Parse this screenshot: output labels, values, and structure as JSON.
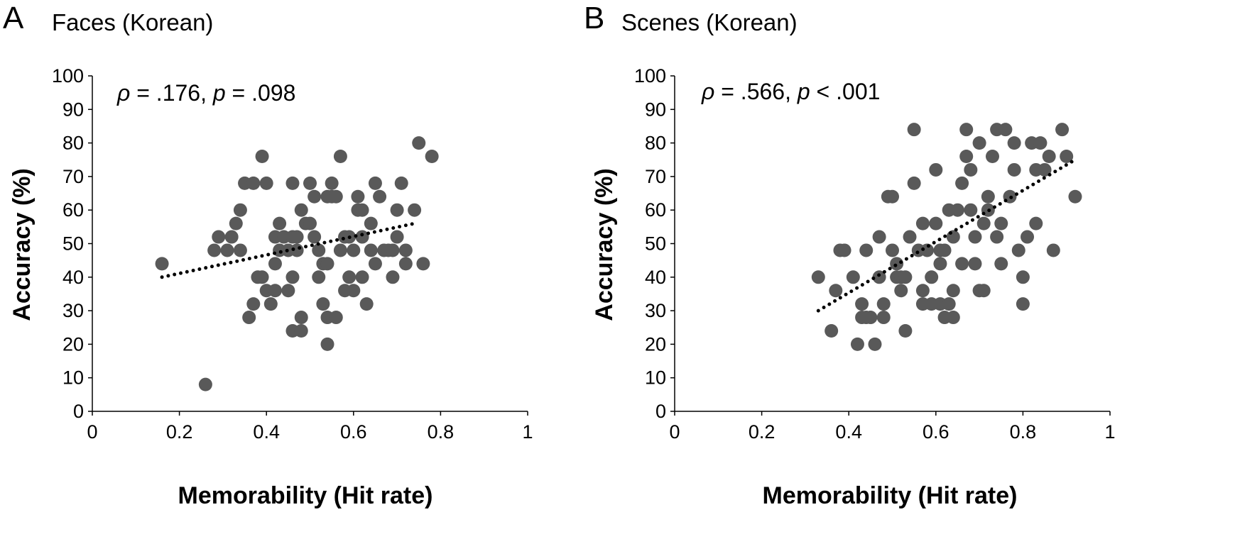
{
  "chart_data": [
    {
      "type": "scatter",
      "panel_label": "A",
      "title": "Faces (Korean)",
      "stat_text": {
        "rho_symbol": "ρ",
        "rho_value": " = .176, ",
        "p_symbol": "p",
        "p_value": " = .098"
      },
      "xlabel": "Memorability (Hit rate)",
      "ylabel": "Accuracy (%)",
      "xlim": [
        0,
        1
      ],
      "ylim": [
        0,
        100
      ],
      "xticks": [
        "0",
        "0.2",
        "0.4",
        "0.6",
        "0.8",
        "1"
      ],
      "yticks": [
        "0",
        "10",
        "20",
        "30",
        "40",
        "50",
        "60",
        "70",
        "80",
        "90",
        "100"
      ],
      "trendline": {
        "x": [
          0.16,
          0.74
        ],
        "y": [
          40,
          56
        ]
      },
      "points": [
        {
          "x": 0.16,
          "y": 44
        },
        {
          "x": 0.26,
          "y": 8
        },
        {
          "x": 0.28,
          "y": 48
        },
        {
          "x": 0.29,
          "y": 52
        },
        {
          "x": 0.31,
          "y": 48
        },
        {
          "x": 0.32,
          "y": 52
        },
        {
          "x": 0.33,
          "y": 56
        },
        {
          "x": 0.34,
          "y": 48
        },
        {
          "x": 0.34,
          "y": 60
        },
        {
          "x": 0.35,
          "y": 68
        },
        {
          "x": 0.36,
          "y": 28
        },
        {
          "x": 0.37,
          "y": 32
        },
        {
          "x": 0.37,
          "y": 68
        },
        {
          "x": 0.38,
          "y": 40
        },
        {
          "x": 0.39,
          "y": 40
        },
        {
          "x": 0.39,
          "y": 76
        },
        {
          "x": 0.4,
          "y": 68
        },
        {
          "x": 0.4,
          "y": 36
        },
        {
          "x": 0.41,
          "y": 32
        },
        {
          "x": 0.42,
          "y": 36
        },
        {
          "x": 0.42,
          "y": 44
        },
        {
          "x": 0.42,
          "y": 52
        },
        {
          "x": 0.43,
          "y": 48
        },
        {
          "x": 0.43,
          "y": 56
        },
        {
          "x": 0.44,
          "y": 52
        },
        {
          "x": 0.45,
          "y": 36
        },
        {
          "x": 0.45,
          "y": 48
        },
        {
          "x": 0.46,
          "y": 68
        },
        {
          "x": 0.46,
          "y": 52
        },
        {
          "x": 0.46,
          "y": 40
        },
        {
          "x": 0.46,
          "y": 24
        },
        {
          "x": 0.47,
          "y": 48
        },
        {
          "x": 0.47,
          "y": 52
        },
        {
          "x": 0.48,
          "y": 28
        },
        {
          "x": 0.48,
          "y": 60
        },
        {
          "x": 0.48,
          "y": 24
        },
        {
          "x": 0.49,
          "y": 56
        },
        {
          "x": 0.5,
          "y": 68
        },
        {
          "x": 0.5,
          "y": 56
        },
        {
          "x": 0.51,
          "y": 52
        },
        {
          "x": 0.51,
          "y": 64
        },
        {
          "x": 0.52,
          "y": 40
        },
        {
          "x": 0.52,
          "y": 48
        },
        {
          "x": 0.53,
          "y": 44
        },
        {
          "x": 0.53,
          "y": 32
        },
        {
          "x": 0.54,
          "y": 64
        },
        {
          "x": 0.54,
          "y": 28
        },
        {
          "x": 0.54,
          "y": 44
        },
        {
          "x": 0.54,
          "y": 20
        },
        {
          "x": 0.55,
          "y": 68
        },
        {
          "x": 0.55,
          "y": 64
        },
        {
          "x": 0.56,
          "y": 64
        },
        {
          "x": 0.56,
          "y": 28
        },
        {
          "x": 0.57,
          "y": 48
        },
        {
          "x": 0.57,
          "y": 76
        },
        {
          "x": 0.58,
          "y": 36
        },
        {
          "x": 0.58,
          "y": 52
        },
        {
          "x": 0.59,
          "y": 40
        },
        {
          "x": 0.59,
          "y": 52
        },
        {
          "x": 0.6,
          "y": 36
        },
        {
          "x": 0.6,
          "y": 48
        },
        {
          "x": 0.61,
          "y": 60
        },
        {
          "x": 0.61,
          "y": 64
        },
        {
          "x": 0.62,
          "y": 60
        },
        {
          "x": 0.62,
          "y": 40
        },
        {
          "x": 0.62,
          "y": 52
        },
        {
          "x": 0.63,
          "y": 32
        },
        {
          "x": 0.64,
          "y": 48
        },
        {
          "x": 0.64,
          "y": 56
        },
        {
          "x": 0.65,
          "y": 68
        },
        {
          "x": 0.65,
          "y": 44
        },
        {
          "x": 0.66,
          "y": 64
        },
        {
          "x": 0.67,
          "y": 48
        },
        {
          "x": 0.68,
          "y": 48
        },
        {
          "x": 0.69,
          "y": 40
        },
        {
          "x": 0.69,
          "y": 48
        },
        {
          "x": 0.7,
          "y": 52
        },
        {
          "x": 0.7,
          "y": 60
        },
        {
          "x": 0.71,
          "y": 68
        },
        {
          "x": 0.72,
          "y": 44
        },
        {
          "x": 0.72,
          "y": 48
        },
        {
          "x": 0.74,
          "y": 60
        },
        {
          "x": 0.75,
          "y": 80
        },
        {
          "x": 0.76,
          "y": 44
        },
        {
          "x": 0.78,
          "y": 76
        }
      ]
    },
    {
      "type": "scatter",
      "panel_label": "B",
      "title": "Scenes (Korean)",
      "stat_text": {
        "rho_symbol": "ρ",
        "rho_value": " = .566, ",
        "p_symbol": "p",
        "p_value": " < .001"
      },
      "xlabel": "Memorability (Hit rate)",
      "ylabel": "Accuracy (%)",
      "xlim": [
        0,
        1
      ],
      "ylim": [
        0,
        100
      ],
      "xticks": [
        "0",
        "0.2",
        "0.4",
        "0.6",
        "0.8",
        "1"
      ],
      "yticks": [
        "0",
        "10",
        "20",
        "30",
        "40",
        "50",
        "60",
        "70",
        "80",
        "90",
        "100"
      ],
      "trendline": {
        "x": [
          0.33,
          0.92
        ],
        "y": [
          30,
          75
        ]
      },
      "points": [
        {
          "x": 0.33,
          "y": 40
        },
        {
          "x": 0.36,
          "y": 24
        },
        {
          "x": 0.37,
          "y": 36
        },
        {
          "x": 0.38,
          "y": 48
        },
        {
          "x": 0.39,
          "y": 48
        },
        {
          "x": 0.41,
          "y": 40
        },
        {
          "x": 0.42,
          "y": 20
        },
        {
          "x": 0.43,
          "y": 28
        },
        {
          "x": 0.43,
          "y": 32
        },
        {
          "x": 0.44,
          "y": 48
        },
        {
          "x": 0.44,
          "y": 28
        },
        {
          "x": 0.45,
          "y": 28
        },
        {
          "x": 0.46,
          "y": 20
        },
        {
          "x": 0.47,
          "y": 40
        },
        {
          "x": 0.47,
          "y": 52
        },
        {
          "x": 0.48,
          "y": 28
        },
        {
          "x": 0.48,
          "y": 32
        },
        {
          "x": 0.49,
          "y": 64
        },
        {
          "x": 0.5,
          "y": 64
        },
        {
          "x": 0.5,
          "y": 48
        },
        {
          "x": 0.51,
          "y": 40
        },
        {
          "x": 0.51,
          "y": 44
        },
        {
          "x": 0.52,
          "y": 40
        },
        {
          "x": 0.52,
          "y": 36
        },
        {
          "x": 0.53,
          "y": 24
        },
        {
          "x": 0.53,
          "y": 40
        },
        {
          "x": 0.54,
          "y": 52
        },
        {
          "x": 0.55,
          "y": 84
        },
        {
          "x": 0.55,
          "y": 68
        },
        {
          "x": 0.56,
          "y": 48
        },
        {
          "x": 0.57,
          "y": 56
        },
        {
          "x": 0.57,
          "y": 36
        },
        {
          "x": 0.57,
          "y": 32
        },
        {
          "x": 0.58,
          "y": 48
        },
        {
          "x": 0.59,
          "y": 40
        },
        {
          "x": 0.59,
          "y": 32
        },
        {
          "x": 0.6,
          "y": 72
        },
        {
          "x": 0.6,
          "y": 56
        },
        {
          "x": 0.61,
          "y": 32
        },
        {
          "x": 0.61,
          "y": 48
        },
        {
          "x": 0.61,
          "y": 44
        },
        {
          "x": 0.62,
          "y": 48
        },
        {
          "x": 0.62,
          "y": 28
        },
        {
          "x": 0.63,
          "y": 32
        },
        {
          "x": 0.63,
          "y": 60
        },
        {
          "x": 0.64,
          "y": 36
        },
        {
          "x": 0.64,
          "y": 28
        },
        {
          "x": 0.64,
          "y": 52
        },
        {
          "x": 0.65,
          "y": 60
        },
        {
          "x": 0.66,
          "y": 68
        },
        {
          "x": 0.66,
          "y": 44
        },
        {
          "x": 0.67,
          "y": 76
        },
        {
          "x": 0.67,
          "y": 84
        },
        {
          "x": 0.68,
          "y": 72
        },
        {
          "x": 0.68,
          "y": 60
        },
        {
          "x": 0.69,
          "y": 52
        },
        {
          "x": 0.69,
          "y": 44
        },
        {
          "x": 0.7,
          "y": 80
        },
        {
          "x": 0.7,
          "y": 36
        },
        {
          "x": 0.71,
          "y": 36
        },
        {
          "x": 0.71,
          "y": 56
        },
        {
          "x": 0.72,
          "y": 60
        },
        {
          "x": 0.72,
          "y": 64
        },
        {
          "x": 0.73,
          "y": 76
        },
        {
          "x": 0.74,
          "y": 84
        },
        {
          "x": 0.74,
          "y": 52
        },
        {
          "x": 0.75,
          "y": 56
        },
        {
          "x": 0.75,
          "y": 44
        },
        {
          "x": 0.76,
          "y": 84
        },
        {
          "x": 0.77,
          "y": 64
        },
        {
          "x": 0.78,
          "y": 80
        },
        {
          "x": 0.78,
          "y": 72
        },
        {
          "x": 0.79,
          "y": 48
        },
        {
          "x": 0.8,
          "y": 40
        },
        {
          "x": 0.8,
          "y": 32
        },
        {
          "x": 0.81,
          "y": 52
        },
        {
          "x": 0.82,
          "y": 80
        },
        {
          "x": 0.83,
          "y": 56
        },
        {
          "x": 0.83,
          "y": 72
        },
        {
          "x": 0.84,
          "y": 80
        },
        {
          "x": 0.85,
          "y": 72
        },
        {
          "x": 0.86,
          "y": 76
        },
        {
          "x": 0.87,
          "y": 48
        },
        {
          "x": 0.89,
          "y": 84
        },
        {
          "x": 0.9,
          "y": 76
        },
        {
          "x": 0.92,
          "y": 64
        }
      ]
    }
  ]
}
